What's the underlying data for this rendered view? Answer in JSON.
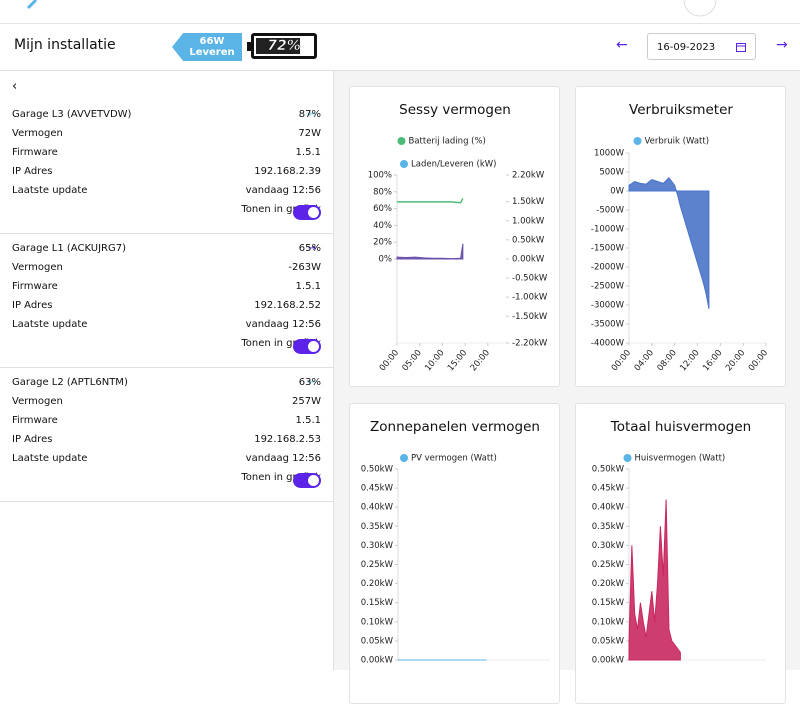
{
  "header": {
    "title": "Mijn installatie",
    "badge_power": "66W",
    "badge_mode": "Leveren",
    "battery": "72%",
    "date": "16-09-2023"
  },
  "devices": [
    {
      "name": "Garage L3 (AVVETVDW)",
      "arrow": "left",
      "percent": "87%",
      "rows": [
        [
          "Vermogen",
          "72W"
        ],
        [
          "Firmware",
          "1.5.1"
        ],
        [
          "IP Adres",
          "192.168.2.39"
        ],
        [
          "Laatste update",
          "vandaag 12:56"
        ]
      ],
      "toggle_label": "Tonen in grafiek"
    },
    {
      "name": "Garage L1 (ACKUJRG7)",
      "arrow": "right",
      "percent": "65%",
      "rows": [
        [
          "Vermogen",
          "-263W"
        ],
        [
          "Firmware",
          "1.5.1"
        ],
        [
          "IP Adres",
          "192.168.2.52"
        ],
        [
          "Laatste update",
          "vandaag 12:56"
        ]
      ],
      "toggle_label": "Tonen in grafiek"
    },
    {
      "name": "Garage L2 (APTL6NTM)",
      "arrow": "left",
      "percent": "63%",
      "rows": [
        [
          "Vermogen",
          "257W"
        ],
        [
          "Firmware",
          "1.5.1"
        ],
        [
          "IP Adres",
          "192.168.2.53"
        ],
        [
          "Laatste update",
          "vandaag 12:56"
        ]
      ],
      "toggle_label": "Tonen in grafiek"
    }
  ],
  "charts": [
    {
      "type": "line",
      "title": "Sessy vermogen",
      "x": [
        0,
        2,
        4,
        6,
        8,
        10,
        12,
        14,
        14.5
      ],
      "series": [
        {
          "name": "Batterij lading (%)",
          "color": "#4cbb7a",
          "values": [
            68,
            68,
            68,
            68,
            68,
            68,
            68,
            67,
            72
          ]
        },
        {
          "name": "Laden/Leveren (kW)",
          "color": "#5ab4e6",
          "fill": "#6a4fa8",
          "axis": "y2",
          "values": [
            0.05,
            0.04,
            0.05,
            0.03,
            0.02,
            0.02,
            0.01,
            0.02,
            0.4
          ]
        }
      ],
      "ylim": [
        -100,
        100
      ],
      "yticks": [
        {
          "value": 100,
          "label": "100%"
        },
        {
          "value": 80,
          "label": "80%"
        },
        {
          "value": 60,
          "label": "60%"
        },
        {
          "value": 40,
          "label": "40%"
        },
        {
          "value": 20,
          "label": "20%"
        },
        {
          "value": 0,
          "label": "0%"
        }
      ],
      "y2lim": [
        -2.2,
        2.2
      ],
      "y2ticks": [
        {
          "value": 2.2,
          "label": "2.20kW"
        },
        {
          "value": 1.5,
          "label": "1.50kW"
        },
        {
          "value": 1,
          "label": "1.00kW"
        },
        {
          "value": 0.5,
          "label": "0.50kW"
        },
        {
          "value": 0,
          "label": "0.00kW"
        },
        {
          "value": -0.5,
          "label": "-0.50kW"
        },
        {
          "value": -1,
          "label": "-1.00kW"
        },
        {
          "value": -1.5,
          "label": "-1.50kW"
        },
        {
          "value": -2.2,
          "label": "-2.20kW"
        }
      ],
      "xlim": [
        0,
        24
      ],
      "xticks": [
        {
          "value": 0,
          "label": "00:00"
        },
        {
          "value": 5,
          "label": "05:00"
        },
        {
          "value": 10,
          "label": "10:00"
        },
        {
          "value": 15,
          "label": "15:00"
        },
        {
          "value": 20,
          "label": "20:00"
        }
      ]
    },
    {
      "type": "area",
      "title": "Verbruiksmeter",
      "x": [
        0,
        1,
        2,
        3,
        4,
        5,
        6,
        7,
        8,
        8.5,
        9,
        10,
        11,
        12,
        13,
        13.5,
        14
      ],
      "series": [
        {
          "name": "Verbruik (Watt)",
          "color": "#5ab4e6",
          "fill": "#4a74c9",
          "values": [
            150,
            250,
            200,
            180,
            300,
            250,
            200,
            350,
            150,
            -100,
            -400,
            -900,
            -1400,
            -1900,
            -2400,
            -2700,
            -3100
          ]
        }
      ],
      "ylim": [
        -4000,
        1000
      ],
      "yticks": [
        {
          "value": 1000,
          "label": "1000W"
        },
        {
          "value": 500,
          "label": "500W"
        },
        {
          "value": 0,
          "label": "0W"
        },
        {
          "value": -500,
          "label": "-500W"
        },
        {
          "value": -1000,
          "label": "-1000W"
        },
        {
          "value": -1500,
          "label": "-1500W"
        },
        {
          "value": -2000,
          "label": "-2000W"
        },
        {
          "value": -2500,
          "label": "-2500W"
        },
        {
          "value": -3000,
          "label": "-3000W"
        },
        {
          "value": -3500,
          "label": "-3500W"
        },
        {
          "value": -4000,
          "label": "-4000W"
        }
      ],
      "xlim": [
        0,
        24
      ],
      "xticks": [
        {
          "value": 0,
          "label": "00:00"
        },
        {
          "value": 4,
          "label": "04:00"
        },
        {
          "value": 8,
          "label": "08:00"
        },
        {
          "value": 12,
          "label": "12:00"
        },
        {
          "value": 16,
          "label": "16:00"
        },
        {
          "value": 20,
          "label": "20:00"
        },
        {
          "value": 24,
          "label": "00:00"
        }
      ]
    },
    {
      "type": "area",
      "title": "Zonnepanelen vermogen",
      "x": [
        0,
        4,
        8,
        12,
        14
      ],
      "series": [
        {
          "name": "PV vermogen (Watt)",
          "color": "#5ab4e6",
          "fill": "#5ab4e6",
          "values": [
            0,
            0,
            0,
            0,
            0
          ]
        }
      ],
      "ylim": [
        0,
        0.5
      ],
      "yticks": [
        {
          "value": 0.5,
          "label": "0.50kW"
        },
        {
          "value": 0.45,
          "label": "0.45kW"
        },
        {
          "value": 0.4,
          "label": "0.40kW"
        },
        {
          "value": 0.35,
          "label": "0.35kW"
        },
        {
          "value": 0.3,
          "label": "0.30kW"
        },
        {
          "value": 0.25,
          "label": "0.25kW"
        },
        {
          "value": 0.2,
          "label": "0.20kW"
        },
        {
          "value": 0.15,
          "label": "0.15kW"
        },
        {
          "value": 0.1,
          "label": "0.10kW"
        },
        {
          "value": 0.05,
          "label": "0.05kW"
        },
        {
          "value": 0,
          "label": "0.00kW"
        }
      ],
      "xlim": [
        0,
        24
      ]
    },
    {
      "type": "area",
      "title": "Totaal huisvermogen",
      "x": [
        0,
        0.5,
        1,
        1.5,
        2,
        2.5,
        3,
        3.5,
        4,
        4.5,
        5,
        5.5,
        6,
        6.5,
        7,
        7.5,
        8,
        8.5,
        9
      ],
      "series": [
        {
          "name": "Huisvermogen (Watt)",
          "color": "#5ab4e6",
          "fill": "#c8285f",
          "values": [
            0.05,
            0.3,
            0.12,
            0.08,
            0.15,
            0.1,
            0.06,
            0.12,
            0.18,
            0.1,
            0.2,
            0.35,
            0.22,
            0.42,
            0.08,
            0.05,
            0.04,
            0.03,
            0.02
          ]
        }
      ],
      "ylim": [
        0,
        0.5
      ],
      "yticks": [
        {
          "value": 0.5,
          "label": "0.50kW"
        },
        {
          "value": 0.45,
          "label": "0.45kW"
        },
        {
          "value": 0.4,
          "label": "0.40kW"
        },
        {
          "value": 0.35,
          "label": "0.35kW"
        },
        {
          "value": 0.3,
          "label": "0.30kW"
        },
        {
          "value": 0.25,
          "label": "0.25kW"
        },
        {
          "value": 0.2,
          "label": "0.20kW"
        },
        {
          "value": 0.15,
          "label": "0.15kW"
        },
        {
          "value": 0.1,
          "label": "0.10kW"
        },
        {
          "value": 0.05,
          "label": "0.05kW"
        },
        {
          "value": 0,
          "label": "0.00kW"
        }
      ],
      "xlim": [
        0,
        24
      ]
    }
  ]
}
